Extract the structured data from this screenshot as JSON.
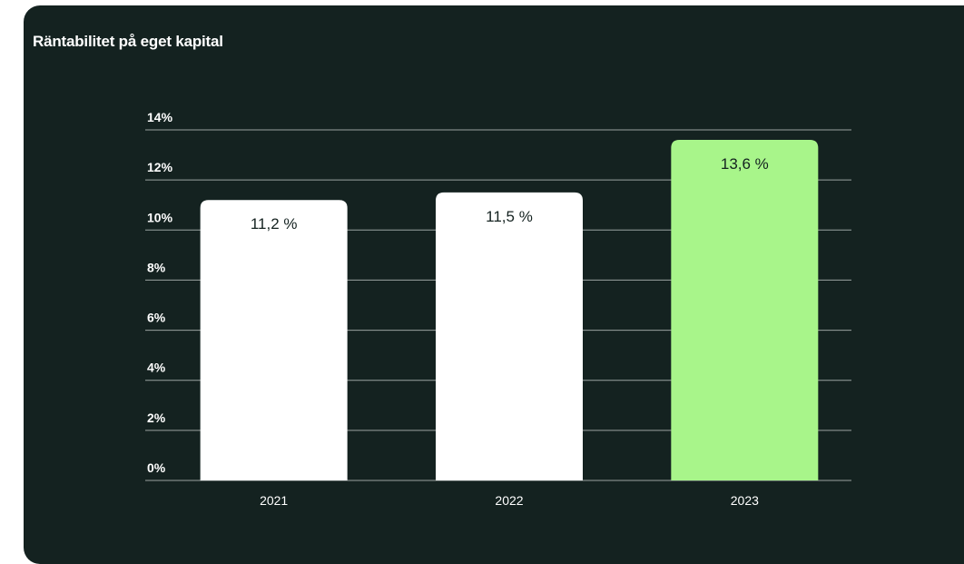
{
  "chart_data": {
    "type": "bar",
    "title": "Räntabilitet på eget kapital",
    "categories": [
      "2021",
      "2022",
      "2023"
    ],
    "values": [
      11.2,
      11.5,
      13.6
    ],
    "value_labels": [
      "11,2 %",
      "11,5 %",
      "13,6 %"
    ],
    "y_ticks": [
      0,
      2,
      4,
      6,
      8,
      10,
      12,
      14
    ],
    "y_tick_labels": [
      "0%",
      "2%",
      "4%",
      "6%",
      "8%",
      "10%",
      "12%",
      "14%"
    ],
    "ylim": [
      0,
      14
    ],
    "grid": true,
    "legend": "none",
    "colors": {
      "background": "#142220",
      "bar_default": "#ffffff",
      "bar_highlight": "#a8f58a",
      "gridline": "#9aa3a1",
      "text": "#ffffff",
      "value_text": "#142220"
    },
    "highlight_index": 2
  }
}
